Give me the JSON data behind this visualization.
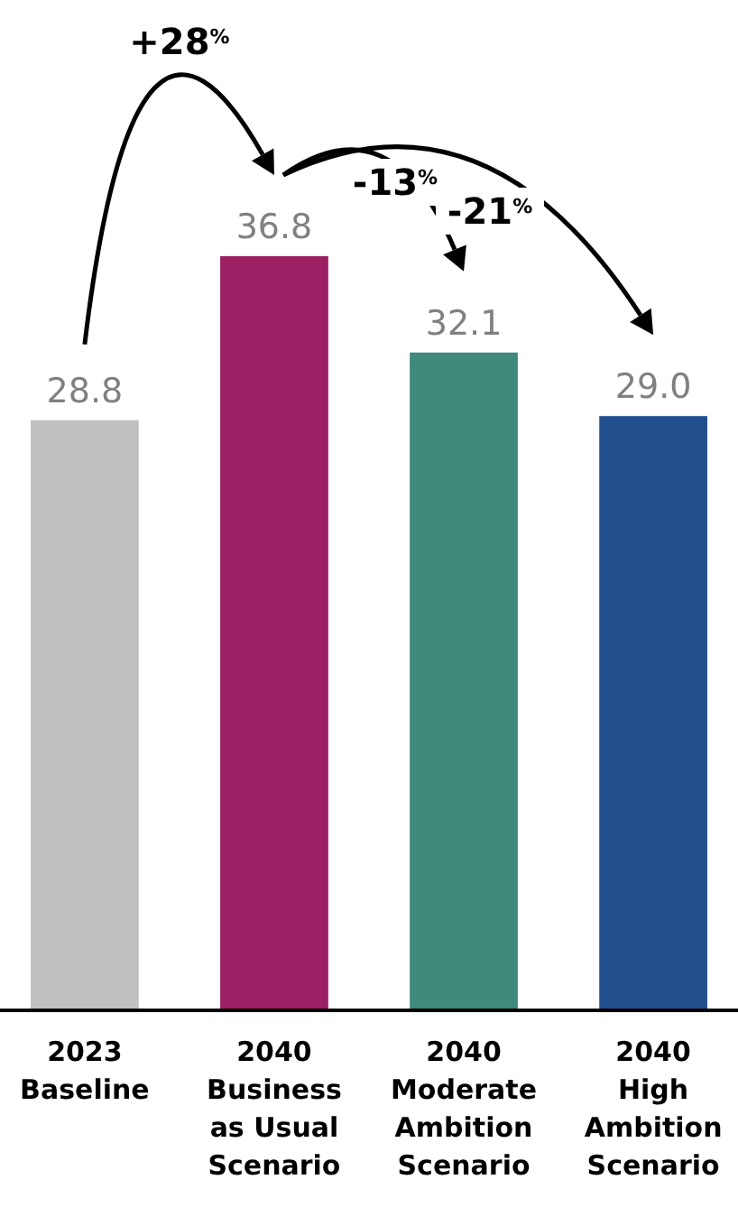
{
  "chart_data": {
    "type": "bar",
    "categories": [
      "2023\nBaseline",
      "2040\nBusiness\nas Usual\nScenario",
      "2040\nModerate\nAmbition\nScenario",
      "2040\nHigh\nAmbition\nScenario"
    ],
    "values": [
      28.8,
      36.8,
      32.1,
      29.0
    ],
    "colors": [
      "#c0c0c0",
      "#9b1f63",
      "#3f8a7a",
      "#22508f"
    ],
    "value_labels": [
      "28.8",
      "36.8",
      "32.1",
      "29.0"
    ],
    "annotations": [
      "+28$^{%}$",
      "-13$^{%}$",
      "-21$^{%}$"
    ]
  }
}
